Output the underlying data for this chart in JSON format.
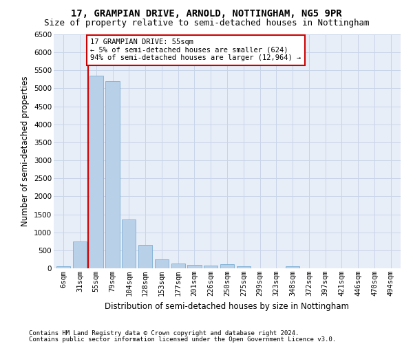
{
  "title1": "17, GRAMPIAN DRIVE, ARNOLD, NOTTINGHAM, NG5 9PR",
  "title2": "Size of property relative to semi-detached houses in Nottingham",
  "xlabel": "Distribution of semi-detached houses by size in Nottingham",
  "ylabel": "Number of semi-detached properties",
  "footer1": "Contains HM Land Registry data © Crown copyright and database right 2024.",
  "footer2": "Contains public sector information licensed under the Open Government Licence v3.0.",
  "annotation_title": "17 GRAMPIAN DRIVE: 55sqm",
  "annotation_line1": "← 5% of semi-detached houses are smaller (624)",
  "annotation_line2": "94% of semi-detached houses are larger (12,964) →",
  "categories": [
    "6sqm",
    "31sqm",
    "55sqm",
    "79sqm",
    "104sqm",
    "128sqm",
    "153sqm",
    "177sqm",
    "201sqm",
    "226sqm",
    "250sqm",
    "275sqm",
    "299sqm",
    "323sqm",
    "348sqm",
    "372sqm",
    "397sqm",
    "421sqm",
    "446sqm",
    "470sqm",
    "494sqm"
  ],
  "values": [
    50,
    750,
    5350,
    5200,
    1350,
    650,
    250,
    125,
    90,
    75,
    110,
    55,
    0,
    0,
    60,
    0,
    0,
    0,
    0,
    0,
    0
  ],
  "bar_color": "#b8d0e8",
  "bar_edgecolor": "#7aadd4",
  "vline_color": "#cc0000",
  "vline_index": 2,
  "annotation_box_edgecolor": "#cc0000",
  "annotation_box_facecolor": "#ffffff",
  "ylim_max": 6500,
  "yticks": [
    0,
    500,
    1000,
    1500,
    2000,
    2500,
    3000,
    3500,
    4000,
    4500,
    5000,
    5500,
    6000,
    6500
  ],
  "grid_color": "#c8d4e8",
  "bg_color": "#e8eef8",
  "title1_fontsize": 10,
  "title2_fontsize": 9,
  "xlabel_fontsize": 8.5,
  "ylabel_fontsize": 8.5,
  "tick_fontsize": 7.5,
  "annotation_fontsize": 7.5,
  "footer_fontsize": 6.5
}
